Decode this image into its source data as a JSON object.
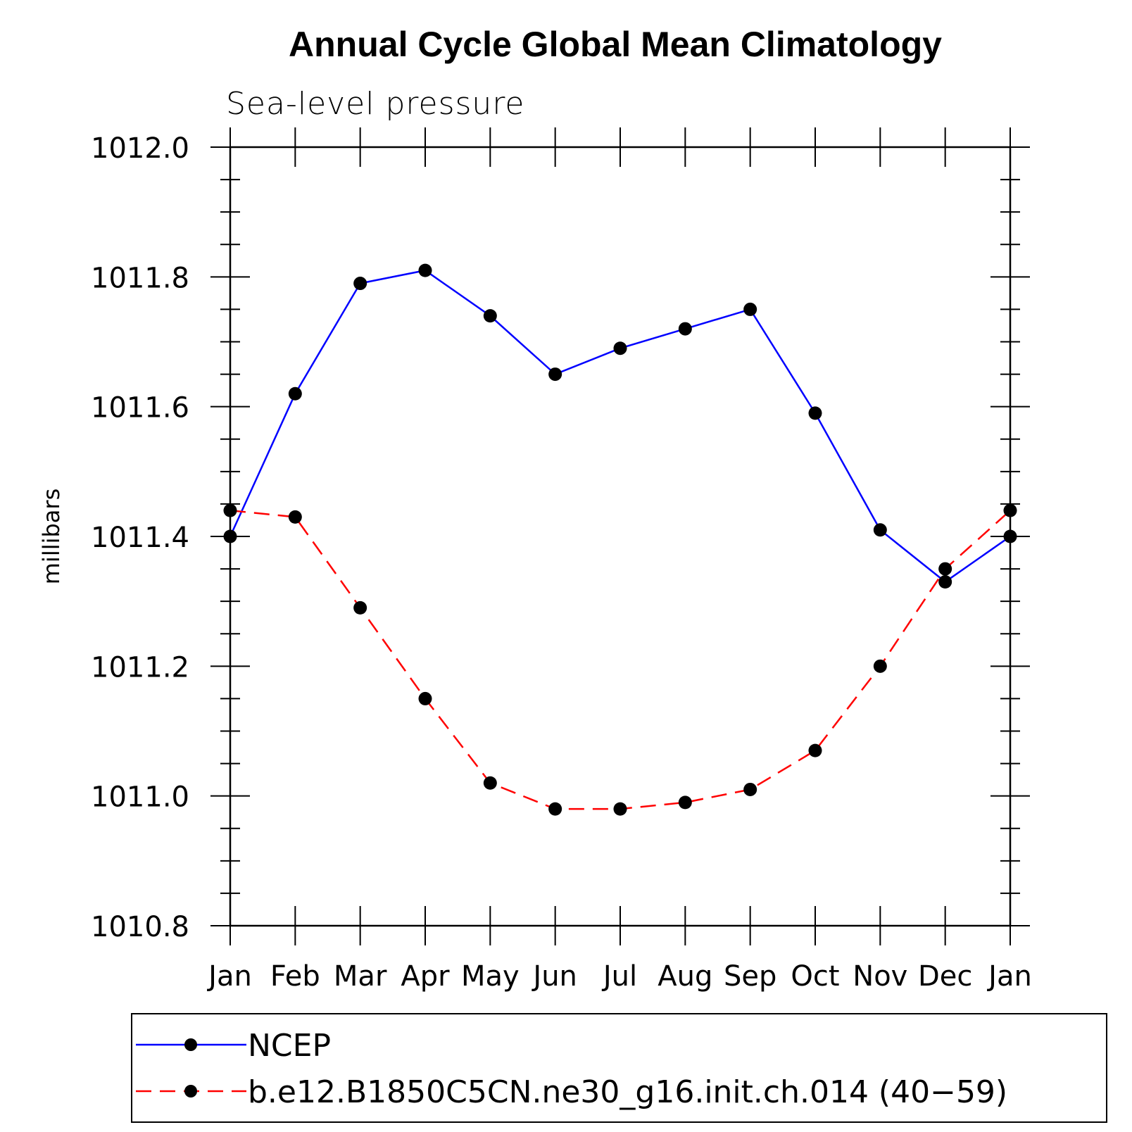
{
  "chart_data": {
    "type": "line",
    "title": "Annual Cycle Global Mean Climatology",
    "subtitle": "Sea-level pressure",
    "xlabel": "",
    "ylabel": "millibars",
    "categories": [
      "Jan",
      "Feb",
      "Mar",
      "Apr",
      "May",
      "Jun",
      "Jul",
      "Aug",
      "Sep",
      "Oct",
      "Nov",
      "Dec",
      "Jan"
    ],
    "ylim": [
      1010.8,
      1012.0
    ],
    "yticks": [
      "1010.8",
      "1011.0",
      "1011.2",
      "1011.4",
      "1011.6",
      "1011.8",
      "1012.0"
    ],
    "grid": false,
    "legend_position": "bottom",
    "series": [
      {
        "name": "NCEP",
        "color": "#0000ff",
        "dash": "solid",
        "marker": "filled-circle",
        "values": [
          1011.4,
          1011.62,
          1011.79,
          1011.81,
          1011.74,
          1011.65,
          1011.69,
          1011.72,
          1011.75,
          1011.59,
          1011.41,
          1011.33,
          1011.4
        ]
      },
      {
        "name": "b.e12.B1850C5CN.ne30_g16.init.ch.014 (40−59)",
        "color": "#ff0000",
        "dash": "dashed",
        "marker": "filled-circle",
        "values": [
          1011.44,
          1011.43,
          1011.29,
          1011.15,
          1011.02,
          1010.98,
          1010.98,
          1010.99,
          1011.01,
          1011.07,
          1011.2,
          1011.35,
          1011.44
        ]
      }
    ]
  }
}
